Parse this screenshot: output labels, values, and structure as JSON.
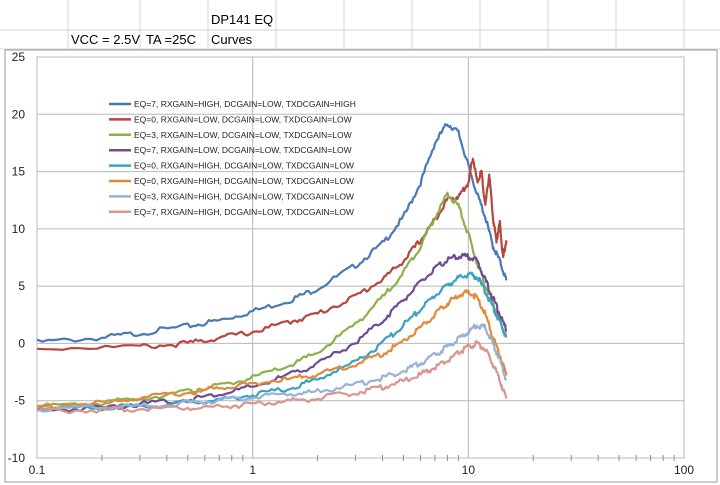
{
  "header": {
    "vcc": "VCC = 2.5V",
    "ta": "TA =25C",
    "title_line1": "DP141 EQ",
    "title_line2": "Curves"
  },
  "chart_data": {
    "type": "line",
    "x_scale": "log",
    "xlim": [
      0.1,
      100
    ],
    "ylim": [
      -10,
      25
    ],
    "x_ticks": [
      "0.1",
      "1",
      "10",
      "100"
    ],
    "y_ticks": [
      "-10",
      "-5",
      "0",
      "5",
      "10",
      "15",
      "20",
      "25"
    ],
    "grid": true,
    "legend_position": "top-left",
    "xlabel": "",
    "ylabel": "",
    "series": [
      {
        "name": "EQ=7, RXGAIN=HIGH, DCGAIN=LOW, TXDCGAIN=HIGH",
        "color": "#4a7ab5",
        "points": [
          [
            0.1,
            0.1
          ],
          [
            0.2,
            0.5
          ],
          [
            0.3,
            0.9
          ],
          [
            0.5,
            1.5
          ],
          [
            0.7,
            2.0
          ],
          [
            1,
            2.8
          ],
          [
            1.5,
            3.8
          ],
          [
            2,
            4.8
          ],
          [
            3,
            6.8
          ],
          [
            4,
            8.7
          ],
          [
            5,
            11.0
          ],
          [
            6,
            14.0
          ],
          [
            7,
            17.5
          ],
          [
            8,
            19.2
          ],
          [
            9,
            18.4
          ],
          [
            10,
            15.5
          ],
          [
            11,
            13.0
          ],
          [
            12,
            11.0
          ],
          [
            13,
            8.5
          ],
          [
            14,
            7.2
          ],
          [
            15,
            5.5
          ]
        ]
      },
      {
        "name": "EQ=0, RXGAIN=LOW, DCGAIN=LOW, TXDCGAIN=LOW",
        "color": "#b5473f",
        "points": [
          [
            0.1,
            -0.4
          ],
          [
            0.3,
            -0.3
          ],
          [
            0.5,
            0.0
          ],
          [
            0.7,
            0.5
          ],
          [
            1,
            1.0
          ],
          [
            1.5,
            1.9
          ],
          [
            2,
            2.6
          ],
          [
            3,
            4.1
          ],
          [
            4,
            5.6
          ],
          [
            5,
            7.2
          ],
          [
            6,
            9.0
          ],
          [
            7,
            10.8
          ],
          [
            8,
            12.6
          ],
          [
            9,
            12.8
          ],
          [
            10,
            14.0
          ],
          [
            10.5,
            16.3
          ],
          [
            11,
            14.0
          ],
          [
            11.5,
            15.0
          ],
          [
            12,
            12.0
          ],
          [
            12.5,
            14.8
          ],
          [
            13,
            11.0
          ],
          [
            13.5,
            9.0
          ],
          [
            14,
            10.5
          ],
          [
            14.5,
            7.5
          ],
          [
            15,
            9.0
          ]
        ]
      },
      {
        "name": "EQ=3, RXGAIN=LOW, DCGAIN=LOW, TXDCGAIN=LOW",
        "color": "#8db14a",
        "points": [
          [
            0.1,
            -5.6
          ],
          [
            0.2,
            -5.2
          ],
          [
            0.3,
            -4.8
          ],
          [
            0.5,
            -4.2
          ],
          [
            0.7,
            -3.7
          ],
          [
            1,
            -3.0
          ],
          [
            1.5,
            -1.9
          ],
          [
            2,
            -0.8
          ],
          [
            3,
            1.7
          ],
          [
            4,
            4.0
          ],
          [
            5,
            6.2
          ],
          [
            6,
            8.5
          ],
          [
            7,
            11.0
          ],
          [
            8,
            13.0
          ],
          [
            9,
            12.0
          ],
          [
            10,
            9.5
          ],
          [
            11,
            7.0
          ],
          [
            12,
            5.0
          ],
          [
            13,
            3.5
          ],
          [
            14,
            2.0
          ],
          [
            15,
            0.5
          ]
        ]
      },
      {
        "name": "EQ=7, RXGAIN=LOW, DCGAIN=LOW, TXDCGAIN=LOW",
        "color": "#6e4d96",
        "points": [
          [
            0.1,
            -5.8
          ],
          [
            0.2,
            -5.6
          ],
          [
            0.3,
            -5.3
          ],
          [
            0.5,
            -4.9
          ],
          [
            0.7,
            -4.4
          ],
          [
            1,
            -3.8
          ],
          [
            1.5,
            -2.7
          ],
          [
            2,
            -1.8
          ],
          [
            3,
            0.1
          ],
          [
            4,
            2.0
          ],
          [
            5,
            3.8
          ],
          [
            6,
            5.3
          ],
          [
            7,
            6.5
          ],
          [
            8,
            7.3
          ],
          [
            9,
            7.6
          ],
          [
            10,
            7.6
          ],
          [
            11,
            7.2
          ],
          [
            12,
            5.5
          ],
          [
            13,
            4.0
          ],
          [
            14,
            2.5
          ],
          [
            15,
            1.2
          ]
        ]
      },
      {
        "name": "EQ=0, RXGAIN=HIGH, DCGAIN=LOW, TXDCGAIN=LOW",
        "color": "#3aa3bd",
        "points": [
          [
            0.1,
            -5.7
          ],
          [
            0.2,
            -5.6
          ],
          [
            0.3,
            -5.5
          ],
          [
            0.5,
            -5.2
          ],
          [
            0.7,
            -4.9
          ],
          [
            1,
            -4.5
          ],
          [
            1.5,
            -3.9
          ],
          [
            2,
            -3.1
          ],
          [
            3,
            -1.6
          ],
          [
            4,
            0.0
          ],
          [
            5,
            1.6
          ],
          [
            6,
            3.0
          ],
          [
            7,
            4.2
          ],
          [
            8,
            5.1
          ],
          [
            9,
            5.7
          ],
          [
            10,
            6.0
          ],
          [
            11,
            5.8
          ],
          [
            12,
            4.5
          ],
          [
            13,
            3.2
          ],
          [
            14,
            1.8
          ],
          [
            15,
            0.6
          ]
        ]
      },
      {
        "name": "EQ=0, RXGAIN=HIGH, DCGAIN=LOW, TXDCGAIN=LOW",
        "color": "#e08a3c",
        "points": [
          [
            0.1,
            -5.5
          ],
          [
            0.2,
            -5.2
          ],
          [
            0.3,
            -4.8
          ],
          [
            0.5,
            -4.3
          ],
          [
            0.7,
            -3.9
          ],
          [
            1,
            -3.5
          ],
          [
            1.5,
            -3.1
          ],
          [
            2,
            -2.7
          ],
          [
            3,
            -1.8
          ],
          [
            4,
            -0.9
          ],
          [
            5,
            0.2
          ],
          [
            6,
            1.4
          ],
          [
            7,
            2.5
          ],
          [
            8,
            3.5
          ],
          [
            9,
            4.2
          ],
          [
            10,
            4.5
          ],
          [
            11,
            4.0
          ],
          [
            12,
            2.5
          ],
          [
            13,
            0.5
          ],
          [
            14,
            -1.0
          ],
          [
            15,
            -2.8
          ]
        ]
      },
      {
        "name": "EQ=3, RXGAIN=HIGH, DCGAIN=LOW, TXDCGAIN=LOW",
        "color": "#98b2d8",
        "points": [
          [
            0.1,
            -5.7
          ],
          [
            0.2,
            -5.6
          ],
          [
            0.3,
            -5.5
          ],
          [
            0.5,
            -5.2
          ],
          [
            0.7,
            -5.0
          ],
          [
            1,
            -4.7
          ],
          [
            1.5,
            -4.4
          ],
          [
            2,
            -4.2
          ],
          [
            3,
            -3.6
          ],
          [
            4,
            -3.0
          ],
          [
            5,
            -2.4
          ],
          [
            6,
            -1.7
          ],
          [
            7,
            -1.0
          ],
          [
            8,
            -0.3
          ],
          [
            9,
            0.4
          ],
          [
            10,
            1.0
          ],
          [
            11,
            1.6
          ],
          [
            12,
            1.4
          ],
          [
            13,
            0.0
          ],
          [
            14,
            -1.5
          ],
          [
            15,
            -3.2
          ]
        ]
      },
      {
        "name": "EQ=7, RXGAIN=HIGH, DCGAIN=LOW, TXDCGAIN=LOW",
        "color": "#d99591",
        "points": [
          [
            0.1,
            -5.9
          ],
          [
            0.2,
            -5.8
          ],
          [
            0.3,
            -5.7
          ],
          [
            0.5,
            -5.6
          ],
          [
            0.7,
            -5.5
          ],
          [
            1,
            -5.3
          ],
          [
            1.5,
            -5.0
          ],
          [
            2,
            -4.8
          ],
          [
            3,
            -4.3
          ],
          [
            4,
            -3.8
          ],
          [
            5,
            -3.3
          ],
          [
            6,
            -2.7
          ],
          [
            7,
            -2.1
          ],
          [
            8,
            -1.5
          ],
          [
            9,
            -0.8
          ],
          [
            10,
            -0.3
          ],
          [
            11,
            0.0
          ],
          [
            12,
            -0.5
          ],
          [
            13,
            -1.8
          ],
          [
            14,
            -3.2
          ],
          [
            15,
            -4.8
          ]
        ]
      }
    ]
  }
}
